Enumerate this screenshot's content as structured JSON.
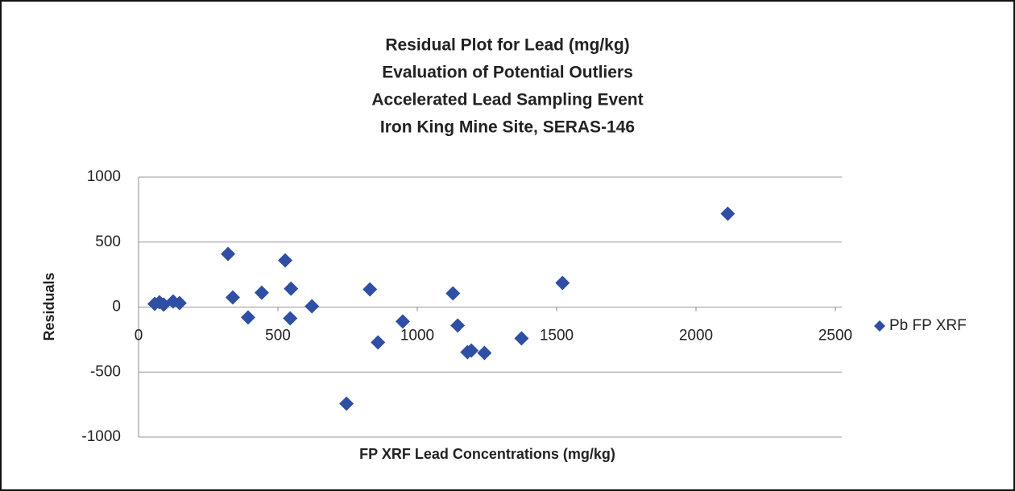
{
  "chart_data": {
    "type": "scatter",
    "title": [
      "Residual Plot for Lead (mg/kg)",
      "Evaluation of Potential Outliers",
      "Accelerated Lead Sampling Event",
      "Iron King Mine Site, SERAS-146"
    ],
    "x_label": "FP XRF Lead Concentrations (mg/kg)",
    "y_label": "Residuals",
    "x": [
      58,
      75,
      90,
      124,
      147,
      321,
      338,
      393,
      442,
      526,
      547,
      544,
      622,
      746,
      830,
      859,
      948,
      1128,
      1145,
      1180,
      1194,
      1241,
      1374,
      1521,
      2114
    ],
    "series": [
      {
        "name": "Pb FP XRF",
        "color": "#2e4fa3",
        "values": [
          25,
          37,
          19,
          43,
          31,
          409,
          74,
          -80,
          111,
          359,
          142,
          -87,
          6,
          -743,
          136,
          -272,
          -111,
          105,
          -142,
          -347,
          -334,
          -353,
          -241,
          186,
          718
        ]
      }
    ],
    "xlim": [
      0,
      2500
    ],
    "xticks": [
      0,
      500,
      1000,
      1500,
      2000,
      2500
    ],
    "ylim": [
      -1000,
      1000
    ],
    "yticks": [
      -1000,
      -500,
      0,
      500,
      1000
    ],
    "grid": true,
    "legend": "right"
  }
}
